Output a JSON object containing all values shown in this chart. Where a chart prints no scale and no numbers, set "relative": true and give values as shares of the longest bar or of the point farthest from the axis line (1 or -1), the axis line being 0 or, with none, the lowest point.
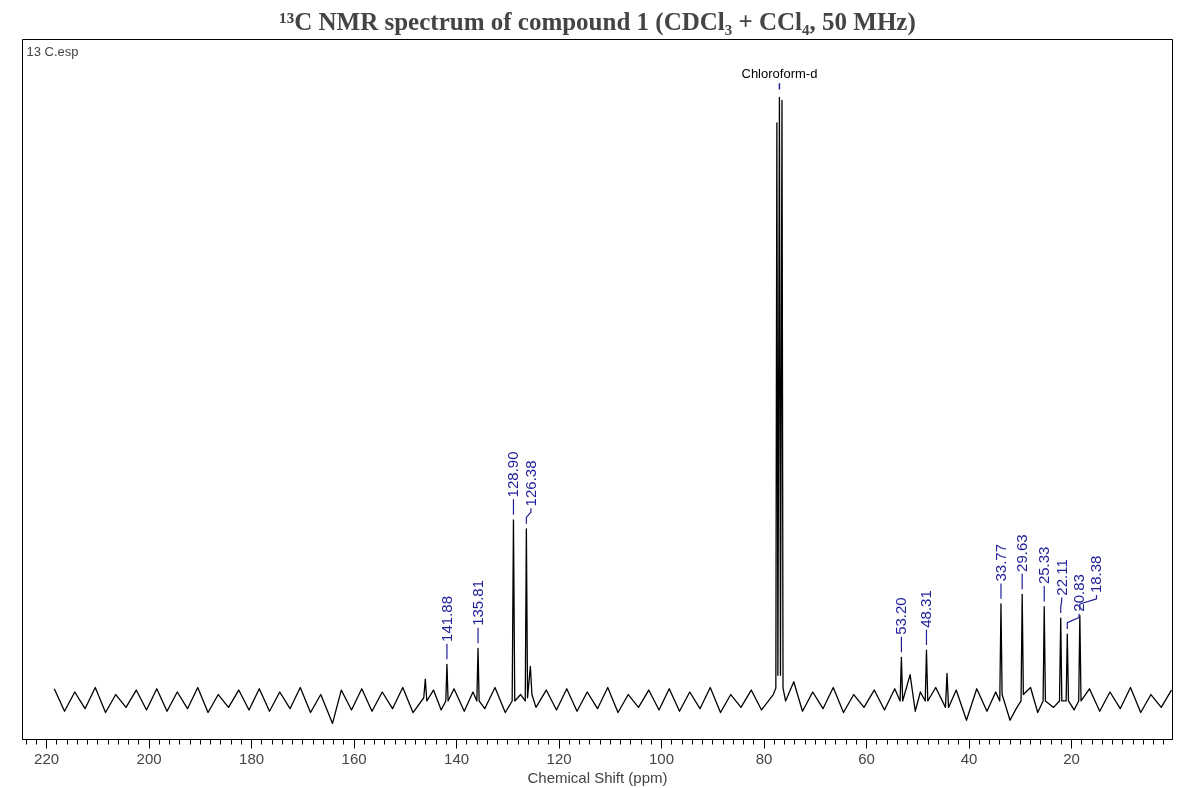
{
  "chart_data": {
    "type": "line",
    "title": "¹³C NMR spectrum of compound 1 (CDCl₃ + CCl₄, 50 MHz)",
    "xlabel": "Chemical Shift (ppm)",
    "relative": true,
    "grid": false,
    "marker": "none",
    "line_style": "solid",
    "xlim": [
      224.7,
      0.3
    ],
    "xticks": [
      220,
      200,
      180,
      160,
      140,
      120,
      100,
      80,
      60,
      40,
      20
    ],
    "series": [
      {
        "color": "#000000",
        "x": [
          218.5,
          216.5,
          214.5,
          212.5,
          210.5,
          208.5,
          206.5,
          204.5,
          202.5,
          200.5,
          198.5,
          196.5,
          194.5,
          192.5,
          190.5,
          188.5,
          186.5,
          184.5,
          182.5,
          180.5,
          178.5,
          176.5,
          174.5,
          172.5,
          170.5,
          168.5,
          166.5,
          164.2,
          162.5,
          160.5,
          158.5,
          156.5,
          154.5,
          152.5,
          150.5,
          148.5,
          146.4,
          146.1,
          145.8,
          144.5,
          143.0,
          142.1,
          141.88,
          141.65,
          140.5,
          138.5,
          136.8,
          136.05,
          135.81,
          135.6,
          134.5,
          132.5,
          130.5,
          129.15,
          128.9,
          128.65,
          127.5,
          126.6,
          126.38,
          126.15,
          125.6,
          125.3,
          124.5,
          122.5,
          120.5,
          118.5,
          116.5,
          114.5,
          112.5,
          110.5,
          108.5,
          106.5,
          104.5,
          102.5,
          100.5,
          98.5,
          96.5,
          94.5,
          92.5,
          90.5,
          88.5,
          86.5,
          84.5,
          82.5,
          80.5,
          78.2,
          77.7,
          77.5,
          77.3,
          77.0,
          76.8,
          76.5,
          76.3,
          75.8,
          74.2,
          72.5,
          70.5,
          68.5,
          66.5,
          64.5,
          62.5,
          60.5,
          58.5,
          56.5,
          54.5,
          53.45,
          53.2,
          52.95,
          51.5,
          50.5,
          49.5,
          48.55,
          48.31,
          48.05,
          46.5,
          44.6,
          44.3,
          44.0,
          42.5,
          40.5,
          38.5,
          36.5,
          34.8,
          34.0,
          33.77,
          33.55,
          32.0,
          30.8,
          29.85,
          29.63,
          29.4,
          28.0,
          26.6,
          25.55,
          25.33,
          25.1,
          23.5,
          22.35,
          22.11,
          21.9,
          21.05,
          20.83,
          20.6,
          19.5,
          18.6,
          18.38,
          18.15,
          16.5,
          14.5,
          12.5,
          10.5,
          8.5,
          6.5,
          4.5,
          2.5,
          0.5
        ],
        "values": [
          0.079,
          0.044,
          0.074,
          0.048,
          0.081,
          0.042,
          0.07,
          0.05,
          0.077,
          0.046,
          0.079,
          0.044,
          0.074,
          0.048,
          0.081,
          0.042,
          0.07,
          0.05,
          0.077,
          0.046,
          0.079,
          0.044,
          0.074,
          0.048,
          0.081,
          0.042,
          0.07,
          0.025,
          0.077,
          0.046,
          0.079,
          0.044,
          0.074,
          0.048,
          0.081,
          0.042,
          0.065,
          0.094,
          0.06,
          0.077,
          0.046,
          0.06,
          0.117,
          0.06,
          0.079,
          0.044,
          0.074,
          0.06,
          0.142,
          0.06,
          0.048,
          0.081,
          0.042,
          0.06,
          0.342,
          0.06,
          0.07,
          0.06,
          0.328,
          0.065,
          0.114,
          0.07,
          0.05,
          0.077,
          0.046,
          0.079,
          0.044,
          0.074,
          0.048,
          0.081,
          0.042,
          0.07,
          0.05,
          0.077,
          0.046,
          0.079,
          0.044,
          0.074,
          0.048,
          0.081,
          0.042,
          0.07,
          0.05,
          0.077,
          0.046,
          0.07,
          0.08,
          0.96,
          0.1,
          1.0,
          0.1,
          0.995,
          0.08,
          0.06,
          0.09,
          0.044,
          0.074,
          0.048,
          0.081,
          0.042,
          0.07,
          0.05,
          0.077,
          0.046,
          0.079,
          0.06,
          0.128,
          0.06,
          0.101,
          0.044,
          0.074,
          0.06,
          0.139,
          0.06,
          0.081,
          0.05,
          0.103,
          0.05,
          0.077,
          0.03,
          0.079,
          0.044,
          0.074,
          0.06,
          0.211,
          0.07,
          0.03,
          0.048,
          0.06,
          0.226,
          0.07,
          0.081,
          0.042,
          0.06,
          0.207,
          0.06,
          0.05,
          0.06,
          0.189,
          0.06,
          0.06,
          0.164,
          0.06,
          0.046,
          0.06,
          0.193,
          0.06,
          0.079,
          0.044,
          0.074,
          0.048,
          0.081,
          0.042,
          0.07,
          0.05,
          0.077
        ]
      }
    ],
    "annotations": [
      "13 C.esp",
      {
        "text": "Chloroform-d",
        "x": 77.0,
        "y": 1.0
      },
      {
        "text": "141.88",
        "x": 141.88,
        "y": 0.117
      },
      {
        "text": "135.81",
        "x": 135.81,
        "y": 0.142
      },
      {
        "text": "128.90",
        "x": 128.9,
        "y": 0.342
      },
      {
        "text": "126.38",
        "x": 126.38,
        "y": 0.328
      },
      {
        "text": "53.20",
        "x": 53.2,
        "y": 0.128
      },
      {
        "text": "48.31",
        "x": 48.31,
        "y": 0.139
      },
      {
        "text": "33.77",
        "x": 33.77,
        "y": 0.211
      },
      {
        "text": "29.63",
        "x": 29.63,
        "y": 0.226
      },
      {
        "text": "25.33",
        "x": 25.33,
        "y": 0.207
      },
      {
        "text": "22.11",
        "x": 22.11,
        "y": 0.189
      },
      {
        "text": "20.83",
        "x": 20.83,
        "y": 0.164
      },
      {
        "text": "18.38",
        "x": 18.38,
        "y": 0.193
      }
    ]
  }
}
